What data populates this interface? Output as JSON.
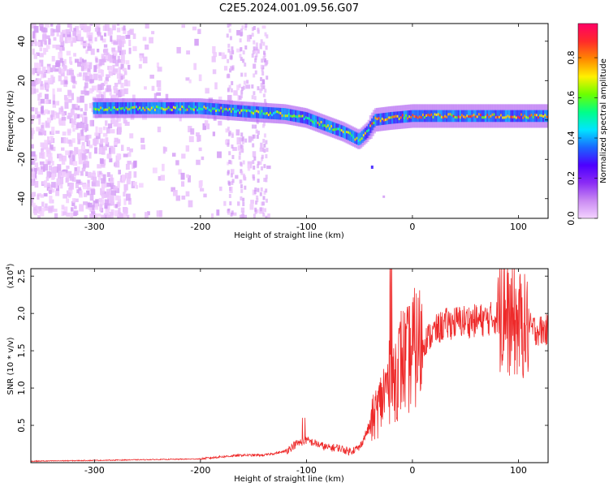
{
  "title": "C2E5.2024.001.09.56.G07",
  "colors": {
    "snr_line": "#ee2a2a",
    "frame": "#000000"
  },
  "chart_data": [
    {
      "type": "heatmap",
      "name": "spectrogram",
      "xlabel": "Height of straight line (km)",
      "ylabel": "Frequency (Hz)",
      "xlim": [
        -360,
        128
      ],
      "ylim": [
        -50,
        49
      ],
      "xticks": [
        -300,
        -200,
        -100,
        0,
        100
      ],
      "yticks": [
        -40,
        -20,
        0,
        20,
        40
      ],
      "colorbar": {
        "label": "Normalized spectral amplitude",
        "range": [
          0.0,
          0.97
        ],
        "ticks": [
          0.0,
          0.2,
          0.4,
          0.6,
          0.8
        ],
        "colormap": [
          "#f4d3ff",
          "#c98af2",
          "#8b2cf5",
          "#4d00ff",
          "#1a66ff",
          "#00e5ff",
          "#00ff88",
          "#6cff00",
          "#fff000",
          "#ff8800",
          "#ff2a2a",
          "#ff0066"
        ]
      },
      "ridge": {
        "x": [
          -300,
          -250,
          -200,
          -150,
          -120,
          -100,
          -80,
          -65,
          -50,
          -42,
          -35,
          -20,
          0,
          50,
          100,
          128
        ],
        "freq": [
          6,
          6,
          6,
          4,
          3,
          1,
          -3,
          -6,
          -10,
          -6,
          0,
          1,
          2,
          2,
          2,
          2
        ]
      },
      "noise_region": {
        "x": [
          -360,
          -135
        ],
        "freq": [
          -50,
          49
        ]
      }
    },
    {
      "type": "line",
      "name": "snr",
      "xlabel": "Height of straight line (km)",
      "ylabel": "SNR (10 * v/v)",
      "scale_note": "(x10",
      "scale_exp": "4",
      "scale_close": ")",
      "xlim": [
        -360,
        128
      ],
      "ylim": [
        0,
        2.6
      ],
      "xticks": [
        -300,
        -200,
        -100,
        0,
        100
      ],
      "yticks": [
        0.5,
        1.0,
        1.5,
        2.0,
        2.5
      ],
      "ytick_labels": [
        "0.5",
        "1.0",
        "1.5",
        "2.0",
        "2.5"
      ],
      "x": [
        -360,
        -300,
        -250,
        -200,
        -180,
        -160,
        -140,
        -120,
        -110,
        -100,
        -90,
        -80,
        -70,
        -60,
        -50,
        -40,
        -30,
        -25,
        -20,
        -15,
        -10,
        -5,
        0,
        10,
        20,
        30,
        40,
        50,
        60,
        70,
        80,
        90,
        100,
        110,
        120,
        128
      ],
      "y": [
        0.02,
        0.03,
        0.04,
        0.05,
        0.08,
        0.1,
        0.1,
        0.15,
        0.25,
        0.3,
        0.25,
        0.2,
        0.2,
        0.15,
        0.2,
        0.5,
        0.8,
        1.0,
        1.1,
        1.2,
        1.4,
        1.35,
        1.5,
        1.6,
        1.75,
        1.85,
        1.88,
        1.9,
        1.9,
        1.92,
        1.95,
        1.9,
        1.85,
        1.8,
        1.77,
        1.78
      ]
    }
  ]
}
